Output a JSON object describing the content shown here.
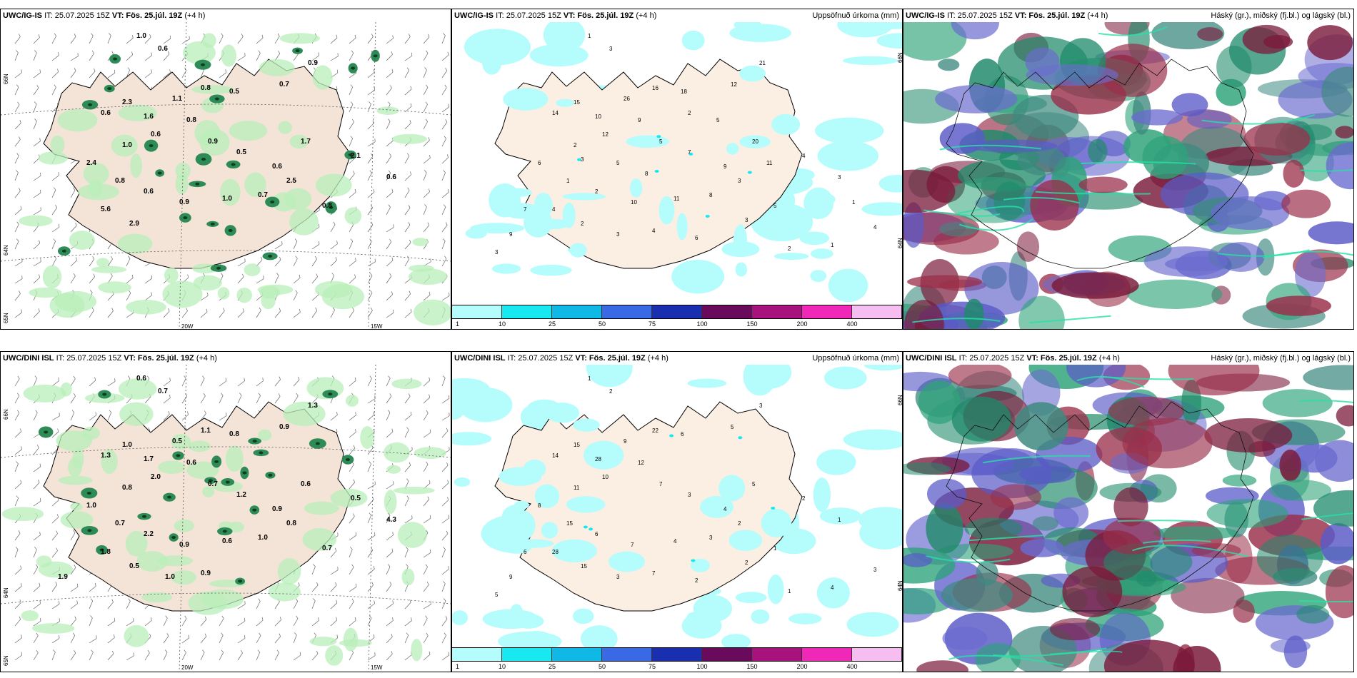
{
  "rows": [
    {
      "precip": {
        "model": "UWC/IG-IS",
        "it": "IT: 25.07.2025 15Z",
        "vt": "VT: Fös. 25.júl. 19Z",
        "lead": "(+4 h)",
        "lat_labels": [
          "66N",
          "64N",
          "65N"
        ],
        "lon_labels": [
          "20W",
          "15W"
        ],
        "values": [
          "1.0",
          "0.6",
          "0.9",
          "0.7",
          "0.5",
          "0.8",
          "1.1",
          "2.3",
          "0.6",
          "1.6",
          "0.8",
          "0.6",
          "1.0",
          "0.9",
          "0.5",
          "0.6",
          "1.7",
          "2.1",
          "0.6",
          "2.4",
          "0.8",
          "0.6",
          "0.9",
          "1.0",
          "0.7",
          "2.5",
          "0.8",
          "5.6",
          "2.9"
        ]
      },
      "accum": {
        "model": "UWC/IG-IS",
        "it": "IT: 25.07.2025 15Z",
        "vt": "VT: Fös. 25.júl. 19Z",
        "lead": "(+4 h)",
        "title": "Uppsöfnuð úrkoma (mm)",
        "lat_labels": [
          "66N",
          "64N"
        ],
        "values": [
          "1",
          "3",
          "21",
          "12",
          "18",
          "16",
          "26",
          "15",
          "14",
          "10",
          "9",
          "12",
          "2",
          "5",
          "7",
          "9",
          "20",
          "4",
          "3",
          "6",
          "1",
          "2",
          "10",
          "11",
          "8",
          "3",
          "5",
          "4",
          "2",
          "3",
          "4",
          "9",
          "7",
          "6",
          "1",
          "2",
          "3",
          "4",
          "3",
          "1",
          "8",
          "5",
          "3",
          "2",
          "5",
          "11"
        ],
        "colorbar": {
          "labels": [
            "1",
            "10",
            "25",
            "50",
            "75",
            "100",
            "150",
            "200",
            "400"
          ],
          "colors": [
            "#b5fcfc",
            "#18e8f0",
            "#10b8e6",
            "#3a69e6",
            "#1a2fb0",
            "#6a0a5c",
            "#a8127c",
            "#f028b8",
            "#f5bdf0"
          ]
        }
      },
      "cloud": {
        "model": "UWC/IG-IS",
        "it": "IT: 25.07.2025 15Z",
        "vt": "VT: Fös. 25.júl. 19Z",
        "lead": "(+4 h)",
        "title": "Háský (gr.), miðský (fj.bl.) og lágský (bl.)"
      }
    },
    {
      "precip": {
        "model": "UWC/DINI ISL",
        "it": "IT: 25.07.2025 15Z",
        "vt": "VT: Fös. 25.júl. 19Z",
        "lead": "(+4 h)",
        "lat_labels": [
          "66N",
          "64N",
          "65N"
        ],
        "lon_labels": [
          "20W",
          "15W"
        ],
        "values": [
          "0.6",
          "0.7",
          "1.3",
          "0.9",
          "0.8",
          "1.1",
          "0.5",
          "1.0",
          "1.3",
          "1.7",
          "0.6",
          "2.0",
          "0.8",
          "0.7",
          "1.2",
          "0.9",
          "0.6",
          "0.5",
          "4.3",
          "1.0",
          "0.7",
          "2.2",
          "0.9",
          "0.6",
          "1.0",
          "0.8",
          "0.7",
          "1.8",
          "0.5",
          "1.0",
          "0.9",
          "1.9"
        ]
      },
      "accum": {
        "model": "UWC/DINI ISL",
        "it": "IT: 25.07.2025 15Z",
        "vt": "VT: Fös. 25.júl. 19Z",
        "lead": "(+4 h)",
        "title": "Uppsöfnuð úrkoma (mm)",
        "lat_labels": [
          "66N",
          "64N"
        ],
        "values": [
          "1",
          "2",
          "3",
          "5",
          "6",
          "22",
          "9",
          "15",
          "14",
          "28",
          "12",
          "10",
          "11",
          "7",
          "3",
          "4",
          "5",
          "2",
          "1",
          "8",
          "15",
          "6",
          "7",
          "4",
          "3",
          "2",
          "1",
          "28",
          "15",
          "3",
          "7",
          "9",
          "6",
          "2",
          "4",
          "1",
          "5",
          "3",
          "2"
        ],
        "colorbar": {
          "labels": [
            "1",
            "10",
            "25",
            "50",
            "75",
            "100",
            "150",
            "200",
            "400"
          ],
          "colors": [
            "#b5fcfc",
            "#18e8f0",
            "#10b8e6",
            "#3a69e6",
            "#1a2fb0",
            "#6a0a5c",
            "#a8127c",
            "#f028b8",
            "#f5bdf0"
          ]
        }
      },
      "cloud": {
        "model": "UWC/DINI ISL",
        "it": "IT: 25.07.2025 15Z",
        "vt": "VT: Fös. 25.júl. 19Z",
        "lead": "(+4 h)",
        "title": "Háský (gr.), miðský (fj.bl.) og lágský (bl.)"
      }
    }
  ]
}
